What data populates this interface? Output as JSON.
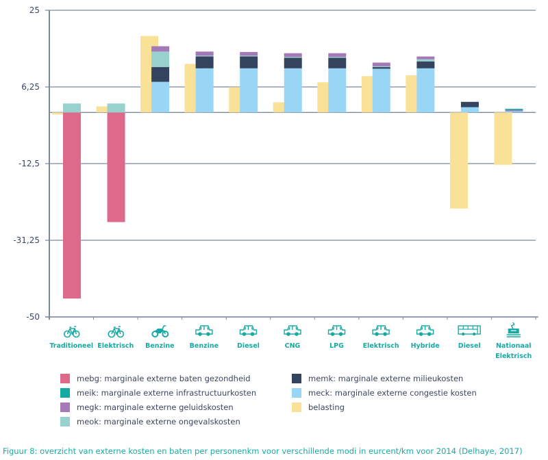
{
  "chart_data": {
    "type": "bar",
    "stacked": true,
    "title": "",
    "xlabel": "",
    "ylabel": "",
    "ylim": [
      -50,
      25
    ],
    "yticks": [
      25,
      6.25,
      -12.5,
      -31.25,
      -50
    ],
    "ytick_labels": [
      "25",
      "6,25",
      "-12,5",
      "-31,25",
      "-50"
    ],
    "grid": true,
    "legend_position": "bottom",
    "categories": [
      {
        "label": "Traditioneel",
        "icon": "bicycle-icon"
      },
      {
        "label": "Elektrisch",
        "icon": "bicycle-icon"
      },
      {
        "label": "Benzine",
        "icon": "motorcycle-icon"
      },
      {
        "label": "Benzine",
        "icon": "car-icon"
      },
      {
        "label": "Diesel",
        "icon": "car-icon"
      },
      {
        "label": "CNG",
        "icon": "car-icon"
      },
      {
        "label": "LPG",
        "icon": "car-icon"
      },
      {
        "label": "Elektrisch",
        "icon": "car-icon"
      },
      {
        "label": "Hybride",
        "icon": "car-icon"
      },
      {
        "label": "Diesel",
        "icon": "bus-icon"
      },
      {
        "label": "Nationaal Elektrisch",
        "icon": "train-icon"
      }
    ],
    "separate_series": {
      "name": "belasting",
      "color": "#f9e298",
      "values": [
        -0.5,
        1.5,
        18.7,
        11.9,
        6.2,
        2.5,
        7.4,
        8.9,
        9.1,
        -23.5,
        -12.8
      ]
    },
    "series": [
      {
        "key": "mebg",
        "name": "mebg: marginale externe baten gezondheid",
        "color": "#de6a8b",
        "values": [
          -45.5,
          -26.8,
          0,
          0,
          0,
          0,
          0,
          0,
          0,
          0,
          0
        ]
      },
      {
        "key": "meck",
        "name": "meck: marginale externe congestie kosten",
        "color": "#99d6f5",
        "values": [
          0,
          0,
          7.5,
          10.8,
          10.8,
          10.8,
          10.8,
          10.7,
          10.8,
          1.3,
          0.3
        ]
      },
      {
        "key": "memk",
        "name": "memk: marginale externe milieukosten",
        "color": "#34445e",
        "values": [
          0,
          0,
          3.6,
          2.9,
          2.9,
          2.6,
          2.6,
          0.4,
          1.7,
          1.3,
          0
        ]
      },
      {
        "key": "meok",
        "name": "meok: marginale externe ongevalskosten",
        "color": "#98d1cd",
        "values": [
          2.2,
          2.2,
          3.8,
          0.2,
          0.2,
          0.2,
          0.2,
          0.2,
          0.5,
          0,
          0
        ]
      },
      {
        "key": "megk",
        "name": "megk: marginale externe geluidskosten",
        "color": "#a379b7",
        "values": [
          0,
          0,
          1.3,
          1.0,
          0.9,
          0.9,
          0.9,
          0.9,
          0.7,
          0,
          0.3
        ]
      },
      {
        "key": "meik",
        "name": "meik: marginale externe infrastructuurkosten",
        "color": "#12aaa0",
        "values": [
          0,
          0,
          0,
          0,
          0,
          0,
          0,
          0,
          0,
          0,
          0.3
        ]
      }
    ]
  },
  "legend": [
    {
      "key": "mebg",
      "label": "mebg: marginale externe baten gezondheid",
      "color": "#de6a8b"
    },
    {
      "key": "meik",
      "label": "meik: marginale externe infrastructuurkosten",
      "color": "#12aaa0"
    },
    {
      "key": "megk",
      "label": "megk: marginale externe geluidskosten",
      "color": "#a379b7"
    },
    {
      "key": "meok",
      "label": "meok: marginale externe ongevalskosten",
      "color": "#98d1cd"
    },
    {
      "key": "memk",
      "label": "memk: marginale externe milieukosten",
      "color": "#34445e"
    },
    {
      "key": "meck",
      "label": "meck: marginale externe congestie kosten",
      "color": "#99d6f5"
    },
    {
      "key": "belasting",
      "label": "belasting",
      "color": "#f9e298"
    }
  ],
  "caption": "Figuur 8: overzicht van externe kosten en baten per personenkm voor verschillende modi in eurcent/km voor 2014 (Delhaye, 2017)",
  "colors": {
    "axis": "#7d889c",
    "text": "#3b4660",
    "accent": "#17aaa3"
  }
}
